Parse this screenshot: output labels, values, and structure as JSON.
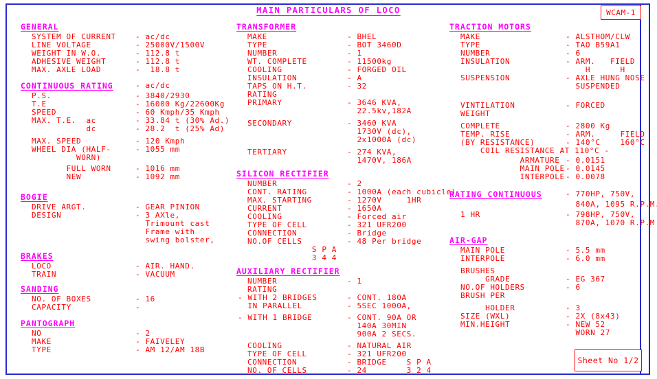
{
  "page": {
    "title": "MAIN PARTICULARS OF LOCO",
    "model_badge": "WCAM-1",
    "sheet_label": "Sheet No 1/2"
  },
  "colors": {
    "text": "#ff0000",
    "heading": "#ff00ff",
    "border": "#2a2ad0"
  },
  "columns": [
    {
      "sections": [
        {
          "h": "GENERAL",
          "rows": [
            {
              "l": "SYSTEM OF CURRENT",
              "v": "ac/dc"
            },
            {
              "l": "LINE VOLTAGE",
              "v": "25000V/1500V"
            },
            {
              "l": "WEIGHT IN W.O.",
              "v": "112.8 t"
            },
            {
              "l": "ADHESIVE WEIGHT",
              "v": "112.8 t"
            },
            {
              "l": "MAX. AXLE LOAD",
              "v": " 18.8 t"
            }
          ]
        },
        {
          "h": "CONTINUOUS RATING",
          "hv": "ac/dc",
          "mt": 10,
          "rows": [
            {
              "l": "P.S.",
              "v": "3840/2930"
            },
            {
              "l": "T.E",
              "v": "16000 Kg/22600Kg"
            },
            {
              "l": "SPEED",
              "v": "60 Kmph/35 Kmph"
            },
            {
              "l": "MAX. T.E.  ac",
              "v": "33.84 t (30% Ad.)"
            },
            {
              "l": "           dc",
              "v": "28.2  t (25% Ad)"
            },
            {
              "sp": 6
            },
            {
              "l": "MAX. SPEED",
              "v": "120 Kmph"
            },
            {
              "l": "WHEEL DIA (HALF-",
              "v": "1055 mm"
            },
            {
              "l": "         WORN)"
            },
            {
              "sp": 4
            },
            {
              "l": "       FULL WORN",
              "v": "1016 mm"
            },
            {
              "l": "       NEW",
              "v": "1092 mm"
            }
          ]
        },
        {
          "h": "BOGIE",
          "mt": 16,
          "rows": [
            {
              "l": "DRIVE ARGT.",
              "v": "GEAR PINION"
            },
            {
              "l": "DESIGN",
              "v": "3 AXle,",
              "c": [
                "Trimount cast",
                "Frame with",
                "swing bolster,"
              ]
            }
          ]
        },
        {
          "h": "BRAKES",
          "mt": 10,
          "rows": [
            {
              "l": "LOCO",
              "v": "AIR. HAND."
            },
            {
              "l": "TRAIN",
              "v": "VACUUM"
            }
          ]
        },
        {
          "h": "SANDING",
          "mt": 8,
          "rows": [
            {
              "l": "NO. OF BOXES",
              "v": "16"
            },
            {
              "l": "CAPACITY",
              "v": ""
            }
          ]
        },
        {
          "h": "PANTOGRAPH",
          "mt": 10,
          "rows": [
            {
              "l": "NO",
              "v": "2"
            },
            {
              "l": "MAKE",
              "v": "FAIVELEY"
            },
            {
              "l": "TYPE",
              "v": "AM 12/AM 18B"
            }
          ]
        }
      ]
    },
    {
      "sections": [
        {
          "h": "TRANSFORMER",
          "rows": [
            {
              "l": "MAKE",
              "v": "BHEL"
            },
            {
              "l": "TYPE",
              "v": "BOT 3460D"
            },
            {
              "l": "NUMBER",
              "v": "1"
            },
            {
              "l": "WT. COMPLETE",
              "v": "11500kg"
            },
            {
              "l": "COOLING",
              "v": "FORGED OIL"
            },
            {
              "l": "INSULATION",
              "v": "A"
            },
            {
              "l": "TAPS ON H.T.",
              "v": "32"
            },
            {
              "l": "RATING"
            },
            {
              "l": "PRIMARY",
              "v": "3646 KVA,",
              "c": [
                "22.5kv,182A"
              ]
            },
            {
              "sp": 6
            },
            {
              "l": "SECONDARY",
              "v": "3460 KVA",
              "c": [
                "1730V (dc),",
                "2x1000A (dc)"
              ]
            },
            {
              "sp": 6
            },
            {
              "l": "TERTIARY",
              "v": "274 KVA,",
              "c": [
                "1470V, 186A"
              ]
            }
          ]
        },
        {
          "h": "SILICON RECTIFIER",
          "mt": 6,
          "rows": [
            {
              "l": "NUMBER",
              "v": "2"
            },
            {
              "l": "CONT. RATING",
              "v": "1000A (each cubicle)."
            },
            {
              "l": "MAX. STARTING",
              "v": "1270V     1HR"
            },
            {
              "l": "CURRENT",
              "v": "1650A"
            },
            {
              "l": "COOLING",
              "v": "Forced air"
            },
            {
              "l": "TYPE OF CELL",
              "v": "321 UFR200"
            },
            {
              "l": "CONNECTION",
              "v": "Bridge"
            },
            {
              "l": "NO.OF CELLS",
              "v": "48 Per bridge"
            },
            {
              "l": "             S P A"
            },
            {
              "l": "             3 4 4"
            }
          ]
        },
        {
          "h": "AUXILIARY RECTIFIER",
          "mt": 6,
          "rows": [
            {
              "l": "NUMBER",
              "v": "1"
            },
            {
              "l": "RATING"
            },
            {
              "l": "- WITH 2 BRIDGES",
              "v": "CONT. 180A",
              "f": 1
            },
            {
              "l": "  IN PARALLEL",
              "v": "5SEC 1000A,",
              "f": 1
            },
            {
              "sp": 5
            },
            {
              "l": "- WITH 1 BRIDGE",
              "v": "CONT. 90A OR",
              "f": 1,
              "c": [
                "140A 30MIN",
                "900A 2 SECS."
              ]
            },
            {
              "sp": 5
            },
            {
              "l": "COOLING",
              "v": "NATURAL AIR"
            },
            {
              "l": "TYPE OF CELL",
              "v": "321 UFR200"
            },
            {
              "l": "CONNECTION",
              "v": "BRIDGE    S P A"
            },
            {
              "l": "NO. OF CELLS",
              "v": "24        3 2 4"
            }
          ]
        }
      ]
    },
    {
      "sections": [
        {
          "h": "TRACTION MOTORS",
          "rows": [
            {
              "l": "MAKE",
              "v": "ALSTHOM/CLW"
            },
            {
              "l": "TYPE",
              "v": "TAO B59A1"
            },
            {
              "l": "NUMBER",
              "v": "6"
            },
            {
              "l": "INSULATION",
              "v": "ARM.   FIELD",
              "c": [
                "  H      H"
              ]
            },
            {
              "l": "SUSPENSION",
              "v": "AXLE HUNG NOSE",
              "c": [
                "SUSPENDED"
              ]
            },
            {
              "sp": 16
            },
            {
              "l": "VINTILATION",
              "v": "FORCED"
            },
            {
              "l": "WEIGHT"
            },
            {
              "sp": 6
            },
            {
              "l": "COMPLETE",
              "v": "2800 Kg"
            },
            {
              "l": "TEMP. RISE",
              "v": "ARM.     FIELD"
            },
            {
              "l": "(BY RESISTANCE)",
              "v": "140°C    160°C"
            },
            {
              "l": "    COIL RESISTANCE AT 110°C -"
            },
            {
              "sp": 2
            },
            {
              "l": "            ARMATURE",
              "v": "0.0151"
            },
            {
              "l": "            MAIN POLE",
              "v": "0.0145"
            },
            {
              "l": "            INTERPOLE",
              "v": "0.0078"
            }
          ]
        },
        {
          "h": "RATING CONTINUOUS",
          "hv": "770HP, 750V,",
          "hc": [
            "840A, 1095 R.P.M."
          ],
          "mt": 12,
          "rows": [
            {
              "sp": 3
            },
            {
              "l": "1 HR",
              "v": "798HP, 750V,",
              "c": [
                "870A, 1070 R.P.M"
              ]
            }
          ]
        },
        {
          "h": "AIR-GAP",
          "mt": 12,
          "rows": [
            {
              "l": "MAIN POLE",
              "v": "5.5 mm"
            },
            {
              "l": "INTERPOLE",
              "v": "6.0 mm"
            },
            {
              "sp": 6
            },
            {
              "l": "BRUSHES"
            },
            {
              "l": "     GRADE",
              "v": "EG 367"
            },
            {
              "l": "NO.OF HOLDERS",
              "v": "6"
            },
            {
              "l": "BRUSH PER"
            },
            {
              "sp": 6
            },
            {
              "l": "     HOLDER",
              "v": "3"
            },
            {
              "l": "SIZE (WXL)",
              "v": "2X (8x43)"
            },
            {
              "l": "MIN.HEIGHT",
              "v": "NEW 52",
              "c": [
                "WORN 27"
              ]
            }
          ]
        }
      ]
    }
  ]
}
